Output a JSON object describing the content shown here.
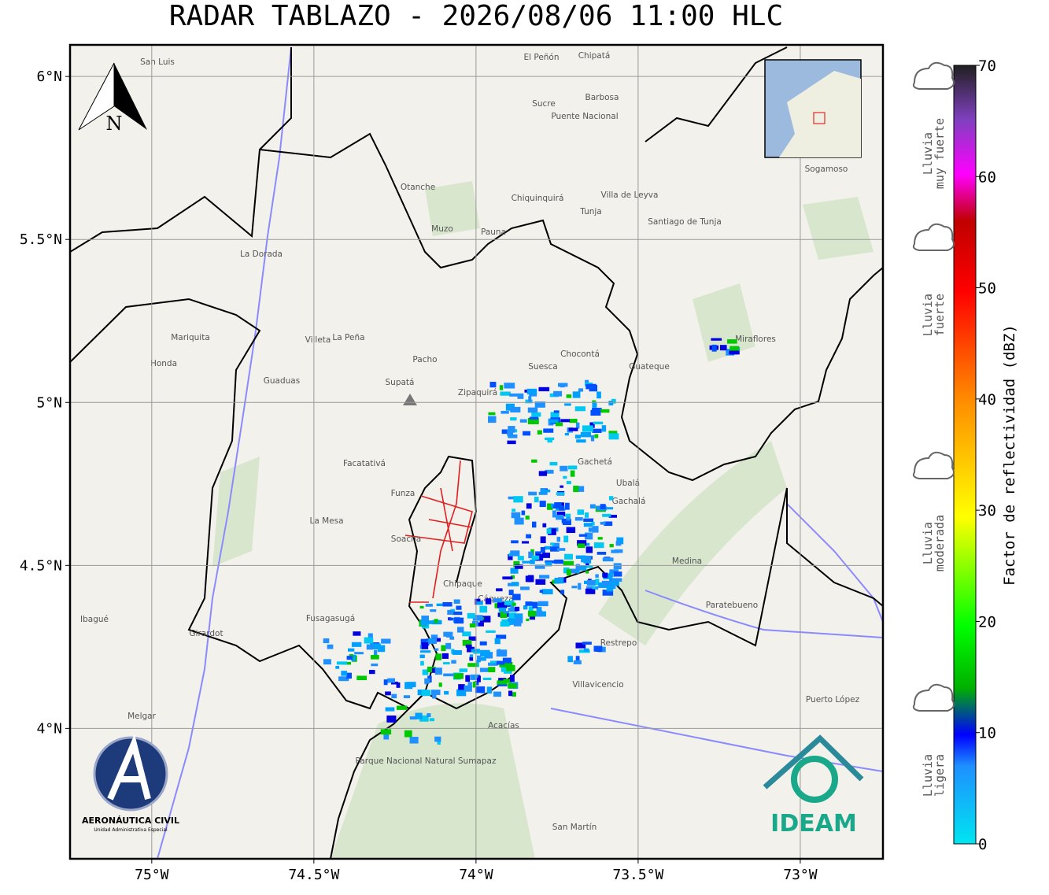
{
  "title": "RADAR TABLAZO - 2026/08/06 11:00 HLC",
  "map": {
    "xlim": [
      -75.252,
      -72.745
    ],
    "ylim": [
      3.6,
      6.097
    ],
    "grid": true,
    "xticks": [
      {
        "value": -75,
        "label": "75°W"
      },
      {
        "value": -74.5,
        "label": "74.5°W"
      },
      {
        "value": -74,
        "label": "74°W"
      },
      {
        "value": -73.5,
        "label": "73.5°W"
      },
      {
        "value": -73,
        "label": "73°W"
      }
    ],
    "yticks": [
      {
        "value": 4,
        "label": "4°N"
      },
      {
        "value": 4.5,
        "label": "4.5°N"
      },
      {
        "value": 5,
        "label": "5°N"
      },
      {
        "value": 5.5,
        "label": "5.5°N"
      },
      {
        "value": 6,
        "label": "6°N"
      }
    ],
    "places": [
      "San Luis",
      "El Peñón",
      "Chipatá",
      "Sucre",
      "Puente Nacional",
      "Barbosa",
      "Chiquinquirá",
      "Villa de Leyva",
      "Tunja",
      "Santiago de Tunja",
      "Sogamoso",
      "Otanche",
      "Muzo",
      "Pauna",
      "La Dorada",
      "Mariquita",
      "Honda",
      "Guaduas",
      "Villeta",
      "La Peña",
      "Pacho",
      "Supatá",
      "Zipaquirá",
      "Suesca",
      "Chocontá",
      "Guateque",
      "Miraflores",
      "Facatativá",
      "Funza",
      "Soacha",
      "La Mesa",
      "Fusagasugá",
      "Girardot",
      "Chipaque",
      "Cáqueza",
      "Gachetá",
      "Ubalá",
      "Gachalá",
      "Medina",
      "Villavicencio",
      "Restrepo",
      "Acacías",
      "San Martín",
      "Melgar",
      "Ibagué",
      "Puerto López",
      "Paratebueno",
      "Parque Nacional Natural Sumapaz"
    ]
  },
  "north_arrow": "N",
  "colorbar": {
    "label": "Factor de reflectividad (dBZ)",
    "lim": [
      0,
      70
    ],
    "ticks": [
      0,
      10,
      20,
      30,
      40,
      50,
      60,
      70
    ]
  },
  "intensity_labels": [
    [
      "Lluvia",
      "muy fuerte"
    ],
    [
      "Lluvia",
      "fuerte"
    ],
    [
      "Lluvia",
      "moderada"
    ],
    [
      "Lluvia",
      "ligera"
    ]
  ],
  "logos": {
    "aerocivil": [
      "AERONÁUTICA CIVIL",
      "Unidad Administrativa Especial"
    ],
    "ideam": "IDEAM"
  }
}
